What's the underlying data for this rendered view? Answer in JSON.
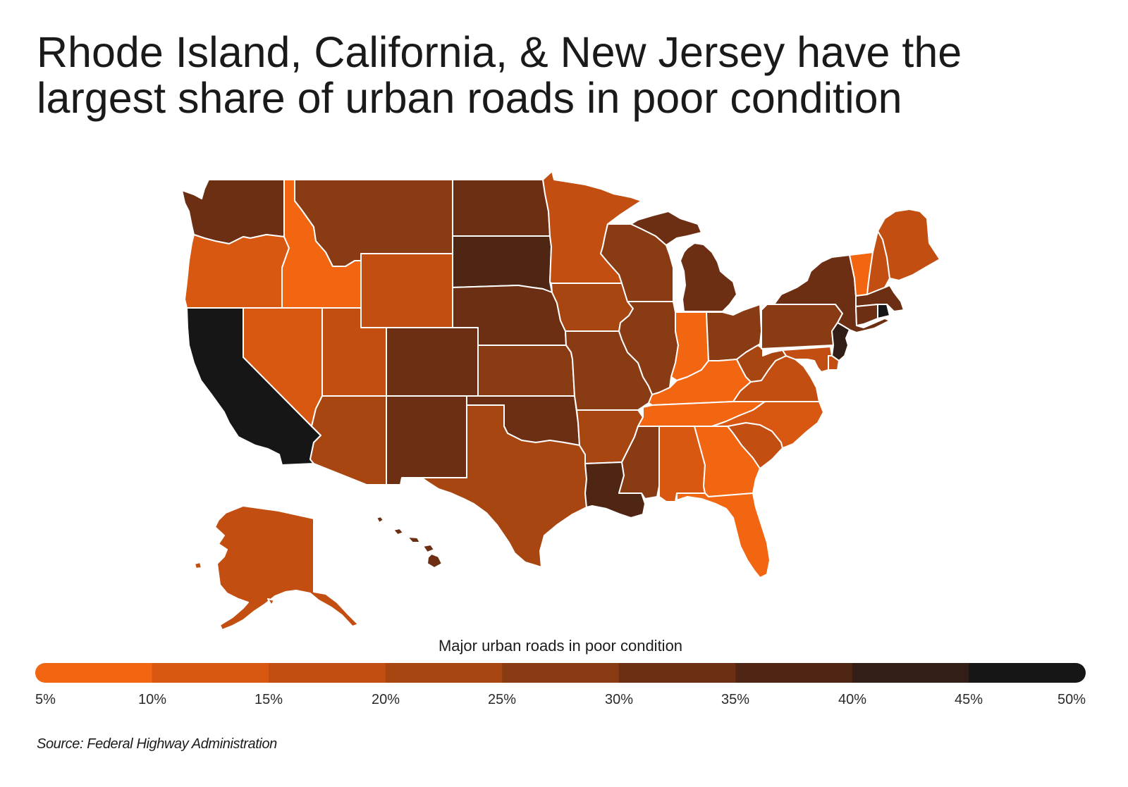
{
  "title_lines": [
    "Rhode Island, California, & New Jersey have the",
    "largest share of urban roads in poor condition"
  ],
  "legend": {
    "title": "Major urban roads in poor condition",
    "ticks": [
      "5%",
      "10%",
      "15%",
      "20%",
      "25%",
      "30%",
      "35%",
      "40%",
      "45%",
      "50%"
    ],
    "colors": [
      "#F26612",
      "#D95811",
      "#C24F11",
      "#A84612",
      "#893B14",
      "#6C2F13",
      "#4F2614",
      "#321E16",
      "#161616"
    ]
  },
  "map_data": {
    "state_values": {
      "WA": 32.5,
      "OR": 12.5,
      "CA": 47.5,
      "ID": 7.5,
      "NV": 12.5,
      "MT": 27.5,
      "WY": 17.5,
      "UT": 17.5,
      "AZ": 22.5,
      "CO": 32.5,
      "NM": 32.5,
      "ND": 32.5,
      "SD": 37.5,
      "NE": 32.5,
      "KS": 27.5,
      "OK": 32.5,
      "TX": 22.5,
      "MN": 17.5,
      "IA": 22.5,
      "MO": 27.5,
      "AR": 22.5,
      "LA": 37.5,
      "WI": 27.5,
      "IL": 27.5,
      "MI": 32.5,
      "IN": 7.5,
      "OH": 27.5,
      "KY": 7.5,
      "TN": 7.5,
      "MS": 27.5,
      "AL": 12.5,
      "GA": 7.5,
      "FL": 7.5,
      "SC": 17.5,
      "NC": 12.5,
      "VA": 17.5,
      "WV": 22.5,
      "PA": 27.5,
      "NY": 32.5,
      "NJ": 42.5,
      "DE": 17.5,
      "MD": 17.5,
      "VT": 7.5,
      "NH": 17.5,
      "ME": 17.5,
      "MA": 32.5,
      "RI": 47.5,
      "CT": 32.5,
      "AK": 17.5,
      "HI": 32.5
    }
  },
  "source": "Source: Federal Highway Administration"
}
